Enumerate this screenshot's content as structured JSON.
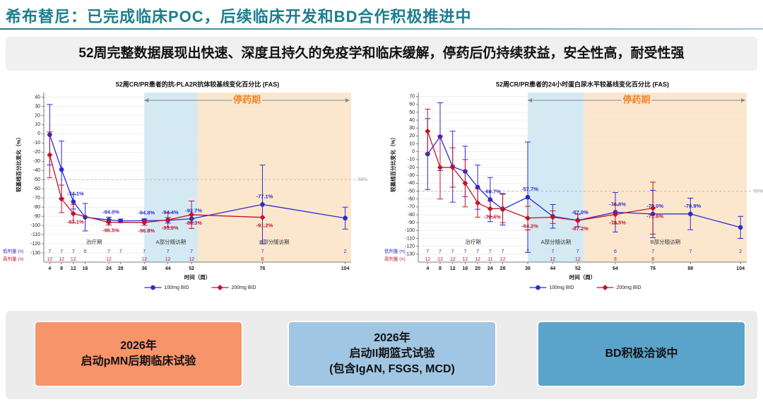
{
  "header": {
    "title": "希布替尼：已完成临床POC，后续临床开发和BD合作积极推进中"
  },
  "banner": "52周完整数据展现出快速、深度且持久的免疫学和临床缓解，停药后仍持续获益，安全性高，耐受性强",
  "chart_data": [
    {
      "type": "line",
      "title": "52周CR/PR患者的抗-PLA2R抗体较基线变化百分比 (FAS)",
      "y_label": "较基线百分比变化（%）",
      "x_label": "时间（周）",
      "xlim": [
        2,
        106
      ],
      "xticks": [
        4,
        8,
        12,
        16,
        24,
        28,
        36,
        44,
        52,
        76,
        104
      ],
      "ylim": [
        -140,
        45
      ],
      "yticks": [
        40,
        30,
        20,
        10,
        0,
        -10,
        -20,
        -30,
        -40,
        -50,
        -60,
        -70,
        -80,
        -90,
        -100,
        -110,
        -120,
        -130
      ],
      "grid": true,
      "bands": [
        {
          "from": 36,
          "to": 54,
          "color": "#d3eaf4"
        },
        {
          "from": 54,
          "to": 106,
          "color": "#fce7cd"
        }
      ],
      "phases": [
        "治疗期",
        "A部分随访期",
        "B部分随访期"
      ],
      "stop_label": "停药期",
      "reference": {
        "value": -50,
        "label": "-50%"
      },
      "series": [
        {
          "name": "100mg BID",
          "color": "#2a2ad6",
          "marker": "circle",
          "n_label": "低剂量 (n)",
          "x": [
            4,
            8,
            12,
            16,
            24,
            28,
            36,
            44,
            52,
            76,
            104
          ],
          "values": [
            -1,
            -39,
            -74.1,
            -91,
            -94.0,
            -95,
            -94.8,
            -94.4,
            -92.7,
            -77.1,
            -92
          ],
          "value_labels": [
            null,
            null,
            "-74.1%",
            null,
            "-94.0%",
            null,
            "-94.8%",
            "-94.4%",
            "-92.7%",
            "-77.1%",
            null
          ],
          "errors": [
            33,
            31,
            8,
            15,
            3,
            2,
            2,
            3,
            4,
            43,
            12
          ],
          "n": [
            7,
            7,
            7,
            5,
            7,
            7,
            7,
            7,
            7,
            7,
            2
          ]
        },
        {
          "name": "200mg BID",
          "color": "#c01429",
          "marker": "diamond",
          "n_label": "高剂量 (n)",
          "x": [
            4,
            8,
            12,
            24,
            36,
            44,
            52,
            76
          ],
          "values": [
            -23,
            -71,
            -87.1,
            -96.5,
            -96.8,
            -93.9,
            -88.3,
            -91.2
          ],
          "value_labels": [
            null,
            null,
            "-87.1%",
            "-96.5%",
            "-96.8%",
            "-93.9%",
            "-88.3%",
            "-91.2%"
          ],
          "errors": [
            25,
            15,
            10,
            3,
            3,
            8,
            15,
            null
          ],
          "n": [
            12,
            12,
            12,
            12,
            12,
            12,
            12,
            6
          ]
        }
      ]
    },
    {
      "type": "line",
      "title": "52周CR/PR患者的24小时蛋白尿水平较基线变化百分比 (FAS)",
      "y_label": "较基线百分比变化（%）",
      "x_label": "时间（周）",
      "xlim": [
        1,
        106
      ],
      "xticks": [
        4,
        8,
        12,
        16,
        20,
        24,
        28,
        36,
        44,
        52,
        64,
        76,
        88,
        104
      ],
      "ylim": [
        -140,
        75
      ],
      "yticks": [
        70,
        60,
        50,
        40,
        30,
        20,
        10,
        0,
        -10,
        -20,
        -30,
        -40,
        -50,
        -60,
        -70,
        -80,
        -90,
        -100,
        -110,
        -120,
        -130
      ],
      "grid": true,
      "bands": [
        {
          "from": 36,
          "to": 54,
          "color": "#d3eaf4"
        },
        {
          "from": 54,
          "to": 106,
          "color": "#fce7cd"
        }
      ],
      "phases": [
        "治疗期",
        "A部分随访期",
        "B部分随访期"
      ],
      "stop_label": "停药期",
      "reference": {
        "value": -50,
        "label": "-50%"
      },
      "series": [
        {
          "name": "100mg BID",
          "color": "#2a2ad6",
          "marker": "circle",
          "n_label": "低剂量 (n)",
          "x": [
            4,
            8,
            12,
            16,
            20,
            24,
            28,
            36,
            44,
            52,
            64,
            76,
            88,
            104
          ],
          "values": [
            -3,
            19,
            -19,
            -25,
            -45,
            -60.7,
            -73,
            -57.7,
            -82,
            -87.0,
            -76.8,
            -79.0,
            -78.9,
            -96
          ],
          "value_labels": [
            null,
            null,
            null,
            null,
            null,
            "-60.7%",
            null,
            "-57.7%",
            null,
            "-87.0%",
            "-76.8%",
            "-79.0%",
            "-78.9%",
            null
          ],
          "errors": [
            45,
            43,
            45,
            32,
            28,
            28,
            20,
            70,
            15,
            8,
            25,
            30,
            20,
            14
          ],
          "n": [
            7,
            7,
            7,
            7,
            7,
            7,
            7,
            7,
            7,
            7,
            6,
            7,
            7,
            2
          ]
        },
        {
          "name": "200mg BID",
          "color": "#c01429",
          "marker": "diamond",
          "n_label": "高剂量 (n)",
          "x": [
            4,
            8,
            12,
            16,
            20,
            24,
            28,
            36,
            44,
            52,
            64,
            76
          ],
          "values": [
            26,
            -20,
            -20,
            -40,
            -65,
            -72.4,
            -72,
            -84.2,
            -83,
            -87.2,
            -79.5,
            -71.6
          ],
          "value_labels": [
            null,
            null,
            null,
            null,
            null,
            "-72.4%",
            null,
            "-84.2%",
            null,
            "-87.2%",
            "-79.5%",
            "-71.6%"
          ],
          "errors": [
            28,
            40,
            25,
            30,
            18,
            10,
            18,
            15,
            8,
            8,
            12,
            33
          ],
          "n": [
            12,
            12,
            12,
            12,
            12,
            11,
            12,
            null,
            12,
            12,
            8,
            6
          ]
        }
      ]
    }
  ],
  "boxes": [
    {
      "lines": [
        "2026年",
        "启动pMN后期临床试验"
      ]
    },
    {
      "lines": [
        "2026年",
        "启动II期篮式试验",
        "(包含IgAN, FSGS, MCD)"
      ]
    },
    {
      "lines": [
        "BD积极洽谈中"
      ]
    }
  ]
}
